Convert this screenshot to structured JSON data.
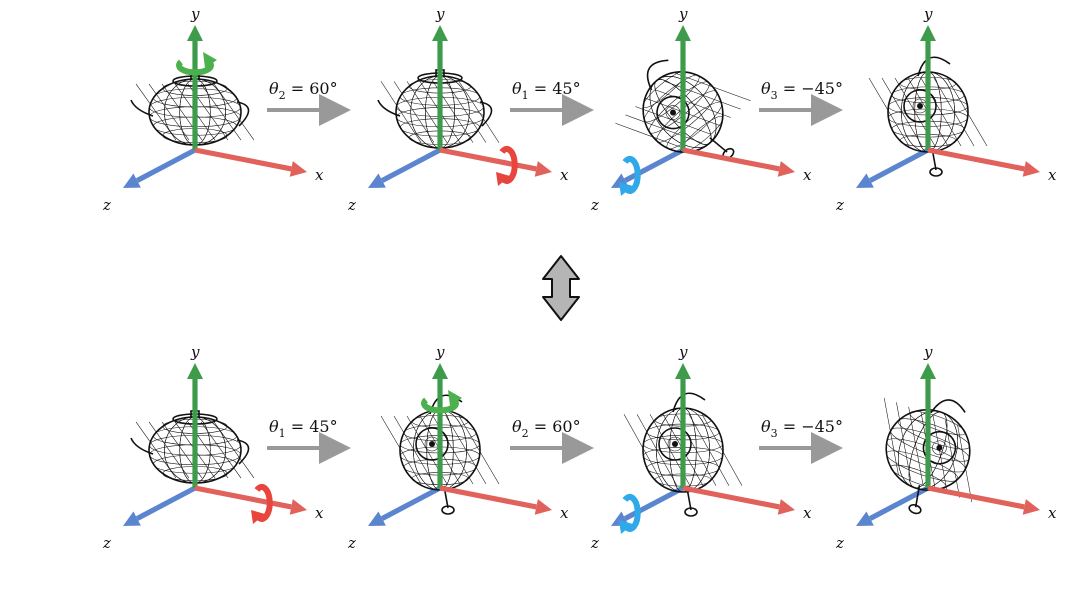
{
  "colors": {
    "x_axis": "#e0625a",
    "y_axis": "#3f9b4c",
    "z_axis": "#5b86cf",
    "step_arrow": "#999999",
    "rot_x": "#e8453c",
    "rot_y": "#4cb04e",
    "rot_z": "#2fa9e8",
    "equiv_arrow": "#b5b5b5"
  },
  "axis_labels": {
    "x": "x",
    "y": "y",
    "z": "z"
  },
  "rows": [
    {
      "frames": [
        {
          "rotate": "y",
          "pose": 0
        },
        {
          "rotate": "x",
          "pose": 1
        },
        {
          "rotate": "z",
          "pose": 2
        },
        {
          "rotate": "none",
          "pose": 3
        }
      ],
      "steps": [
        {
          "symbol": "θ",
          "sub": "2",
          "value": " = 60°"
        },
        {
          "symbol": "θ",
          "sub": "1",
          "value": " = 45°"
        },
        {
          "symbol": "θ",
          "sub": "3",
          "value": " = −45°"
        }
      ]
    },
    {
      "frames": [
        {
          "rotate": "x",
          "pose": 0
        },
        {
          "rotate": "y",
          "pose": 4
        },
        {
          "rotate": "z",
          "pose": 5
        },
        {
          "rotate": "none",
          "pose": 6
        }
      ],
      "steps": [
        {
          "symbol": "θ",
          "sub": "1",
          "value": " = 45°"
        },
        {
          "symbol": "θ",
          "sub": "2",
          "value": " = 60°"
        },
        {
          "symbol": "θ",
          "sub": "3",
          "value": " = −45°"
        }
      ]
    }
  ]
}
